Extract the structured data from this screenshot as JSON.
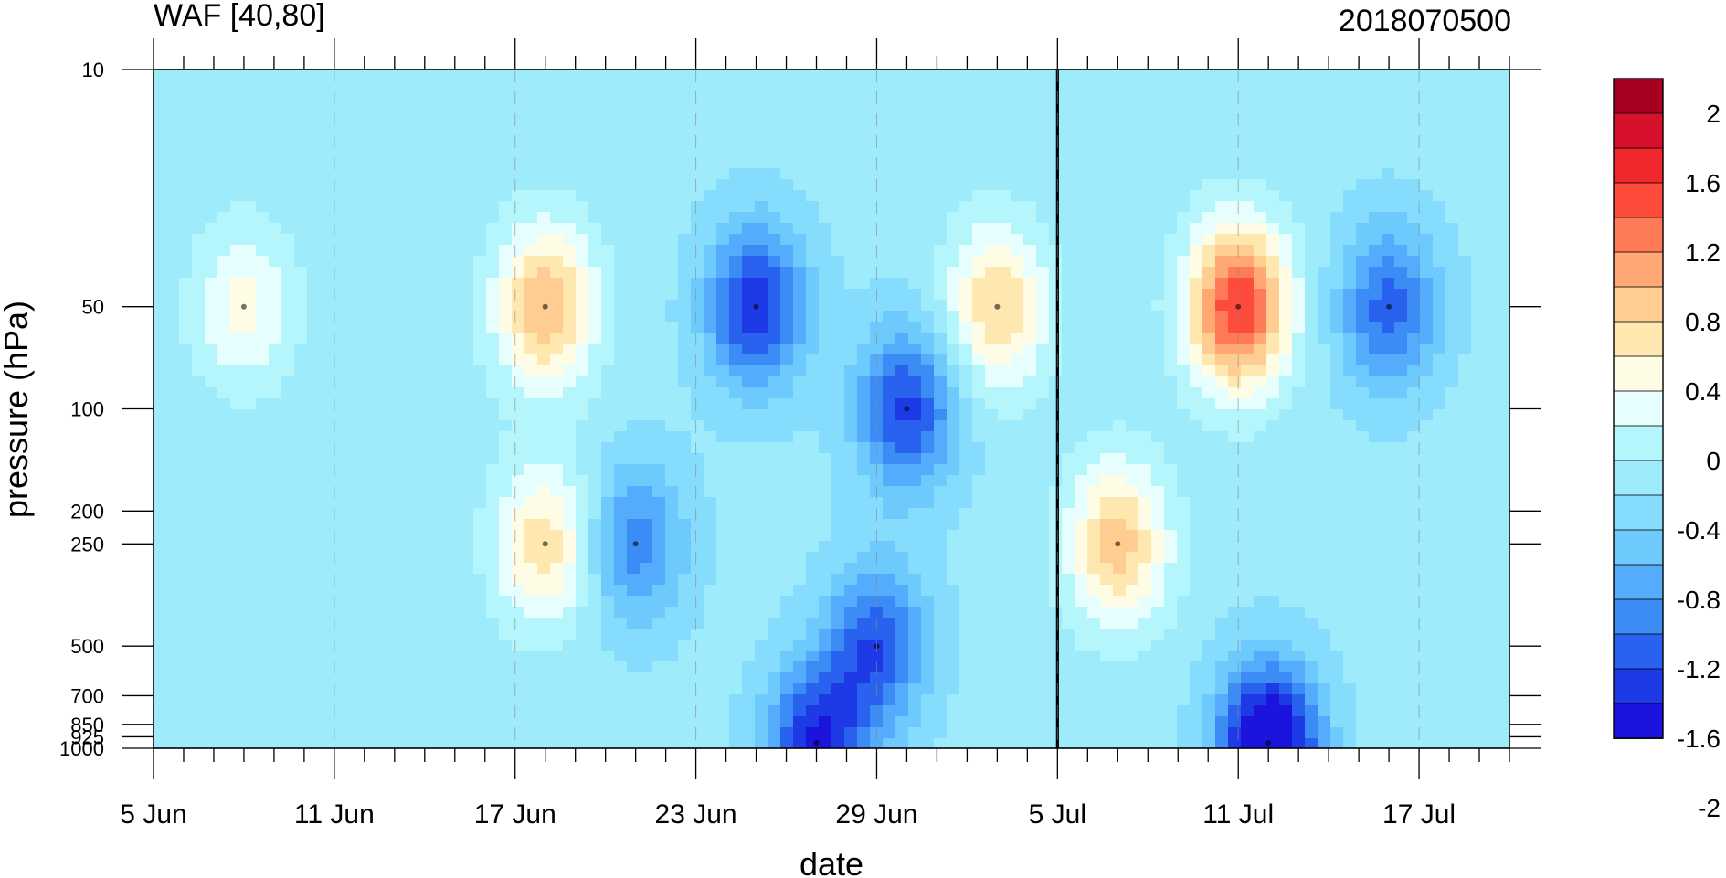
{
  "chart_data": {
    "type": "heatmap",
    "title_left": "WAF [40,80]",
    "title_right": "2018070500",
    "xlabel": "date",
    "ylabel": "pressure (hPa)",
    "x_tick_labels": [
      "5 Jun",
      "11 Jun",
      "17 Jun",
      "23 Jun",
      "29 Jun",
      "5 Jul",
      "11 Jul",
      "17 Jul"
    ],
    "x_range_days_from_5Jun": [
      0,
      45
    ],
    "reference_date_line": "5 Jul",
    "y_scale": "log",
    "y_range": [
      1000,
      10
    ],
    "y_tick_labels": [
      "10",
      "50",
      "100",
      "200",
      "250",
      "500",
      "700",
      "850",
      "925",
      "1000"
    ],
    "levels": [
      1000,
      925,
      850,
      700,
      500,
      250,
      200,
      100,
      50,
      10
    ],
    "colorbar_labels": [
      "2",
      "1.6",
      "1.2",
      "0.8",
      "0.4",
      "0",
      "-0.4",
      "-0.8",
      "-1.2",
      "-1.6",
      "-2"
    ],
    "colorbar_colors": [
      "#a50021",
      "#d7102c",
      "#f0282d",
      "#ff4b3c",
      "#ff7b57",
      "#ffa874",
      "#ffcd92",
      "#ffe8b0",
      "#fffce6",
      "#e6fffe",
      "#b5f5fc",
      "#9eebfc",
      "#86dcfc",
      "#6ecafc",
      "#56acfc",
      "#3c8cf5",
      "#2a62f0",
      "#1e3ae6",
      "#1a14dc"
    ],
    "color_range": [
      -2.2,
      2.2
    ],
    "grid": "none",
    "colorbar_position": "right",
    "features": [
      {
        "name": "positive max 11 Jul 50 hPa",
        "date": "11 Jul",
        "pressure": 50,
        "value": 2.0
      },
      {
        "name": "positive 18 Jun 50 hPa",
        "date": "18 Jun",
        "pressure": 50,
        "value": 1.3
      },
      {
        "name": "positive 18 Jun 250 hPa",
        "date": "18 Jun",
        "pressure": 250,
        "value": 1.0
      },
      {
        "name": "positive 3 Jul 50 hPa",
        "date": "3 Jul",
        "pressure": 50,
        "value": 1.1
      },
      {
        "name": "positive 7 Jul 250 hPa",
        "date": "7 Jul",
        "pressure": 250,
        "value": 1.2
      },
      {
        "name": "positive 8 Jun 50 hPa",
        "date": "8 Jun",
        "pressure": 50,
        "value": 0.7
      },
      {
        "name": "negative min 12 Jul 1000 hPa",
        "date": "12 Jul",
        "pressure": 1000,
        "value": -2.1
      },
      {
        "name": "negative 30 Jun 100 hPa",
        "date": "30 Jun",
        "pressure": 100,
        "value": -1.3
      },
      {
        "name": "negative 25 Jun 50 hPa",
        "date": "25 Jun",
        "pressure": 50,
        "value": -1.4
      },
      {
        "name": "negative 16 Jul 50 hPa",
        "date": "16 Jul",
        "pressure": 50,
        "value": -1.1
      },
      {
        "name": "negative 29 Jun 500 hPa",
        "date": "29 Jun",
        "pressure": 500,
        "value": -1.2
      },
      {
        "name": "negative 27 Jun 1000 hPa",
        "date": "27 Jun",
        "pressure": 1000,
        "value": -1.5
      },
      {
        "name": "negative 21 Jun 250 hPa",
        "date": "21 Jun",
        "pressure": 250,
        "value": -0.9
      }
    ]
  }
}
